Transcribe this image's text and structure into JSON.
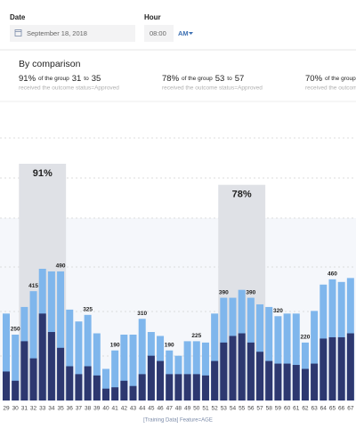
{
  "header": {
    "date_label": "Date",
    "date_value": "September 18, 2018",
    "hour_label": "Hour",
    "hour_value": "08:00",
    "ampm": "AM"
  },
  "comparison": {
    "title": "By comparison",
    "items": [
      {
        "percent": "91%",
        "text": "of the group",
        "from": "31",
        "to_text": "to",
        "to": "35",
        "outcome": "received the outcome status=Approved"
      },
      {
        "percent": "78%",
        "text": "of the group",
        "from": "53",
        "to_text": "to",
        "to": "57",
        "outcome": "received the outcome status=Approved"
      },
      {
        "percent": "70%",
        "text": "of the group",
        "outcome": "received the outcome status=Approved"
      }
    ]
  },
  "chart_data": {
    "type": "stacked_overlay_bar",
    "x_label": "[Training Data] Feature=AGE",
    "categories": [
      "29",
      "30",
      "31",
      "32",
      "33",
      "34",
      "35",
      "36",
      "37",
      "38",
      "39",
      "40",
      "41",
      "42",
      "43",
      "44",
      "45",
      "46",
      "47",
      "48",
      "49",
      "50",
      "51",
      "52",
      "53",
      "54",
      "55",
      "56",
      "57",
      "58",
      "59",
      "60",
      "61",
      "62",
      "63",
      "64",
      "65",
      "66",
      "67"
    ],
    "ylim": [
      0,
      1000
    ],
    "series": [
      {
        "color": "#7fb6ec",
        "values": [
          330,
          250,
          355,
          415,
          500,
          490,
          490,
          345,
          300,
          325,
          255,
          120,
          190,
          250,
          250,
          310,
          260,
          245,
          190,
          170,
          225,
          225,
          220,
          330,
          390,
          390,
          420,
          390,
          365,
          355,
          320,
          330,
          330,
          220,
          340,
          440,
          460,
          450,
          465
        ],
        "value_labels": [
          null,
          "250",
          null,
          "415",
          null,
          null,
          "490",
          null,
          null,
          "325",
          null,
          null,
          "190",
          null,
          null,
          "310",
          null,
          null,
          "190",
          null,
          null,
          "225",
          null,
          null,
          "390",
          null,
          null,
          "390",
          null,
          null,
          "320",
          null,
          null,
          "220",
          null,
          null,
          "460",
          null,
          null
        ]
      },
      {
        "color": "#2d3870",
        "values": [
          110,
          75,
          225,
          160,
          330,
          260,
          200,
          130,
          100,
          130,
          95,
          45,
          50,
          75,
          55,
          100,
          170,
          150,
          100,
          100,
          100,
          100,
          95,
          150,
          220,
          245,
          255,
          220,
          185,
          150,
          140,
          140,
          135,
          120,
          140,
          235,
          240,
          240,
          255
        ]
      }
    ],
    "highlights": [
      {
        "label": "91%",
        "from": "31",
        "to": "35"
      },
      {
        "label": "78%",
        "from": "53",
        "to": "57"
      }
    ]
  }
}
